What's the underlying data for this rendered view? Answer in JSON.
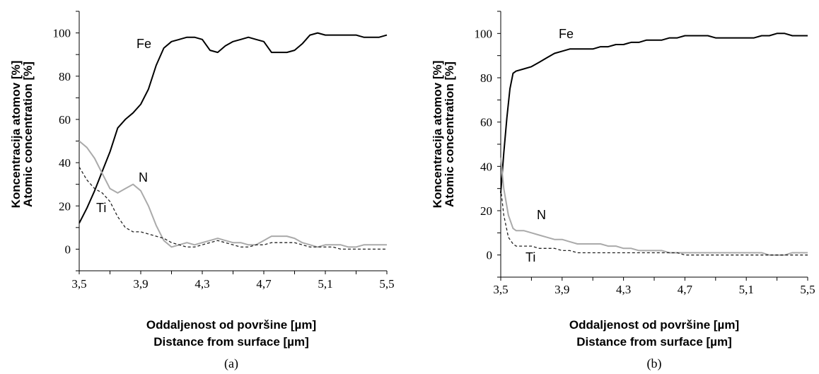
{
  "chart_data": [
    {
      "type": "line",
      "caption": "(a)",
      "xlabel": [
        "Oddaljenost od površine [µm]",
        "Distance from surface [µm]"
      ],
      "ylabel": [
        "Koncentracija atomov [%]",
        "Atomic concentration [%]"
      ],
      "xlim": [
        3.5,
        5.5
      ],
      "ylim": [
        -10,
        110
      ],
      "x_ticks": [
        "3,5",
        "3,9",
        "4,3",
        "4,7",
        "5,1",
        "5,5"
      ],
      "y_ticks": [
        "0",
        "20",
        "40",
        "60",
        "80",
        "100"
      ],
      "series": [
        {
          "name": "Fe",
          "color": "#000000",
          "style": "solid",
          "points": [
            [
              3.5,
              12
            ],
            [
              3.55,
              19
            ],
            [
              3.6,
              27
            ],
            [
              3.65,
              36
            ],
            [
              3.7,
              45
            ],
            [
              3.75,
              56
            ],
            [
              3.8,
              60
            ],
            [
              3.85,
              63
            ],
            [
              3.9,
              67
            ],
            [
              3.95,
              74
            ],
            [
              4.0,
              85
            ],
            [
              4.05,
              93
            ],
            [
              4.1,
              96
            ],
            [
              4.15,
              97
            ],
            [
              4.2,
              98
            ],
            [
              4.25,
              98
            ],
            [
              4.3,
              97
            ],
            [
              4.35,
              92
            ],
            [
              4.4,
              91
            ],
            [
              4.45,
              94
            ],
            [
              4.5,
              96
            ],
            [
              4.55,
              97
            ],
            [
              4.6,
              98
            ],
            [
              4.65,
              97
            ],
            [
              4.7,
              96
            ],
            [
              4.75,
              91
            ],
            [
              4.8,
              91
            ],
            [
              4.85,
              91
            ],
            [
              4.9,
              92
            ],
            [
              4.95,
              95
            ],
            [
              5.0,
              99
            ],
            [
              5.05,
              100
            ],
            [
              5.1,
              99
            ],
            [
              5.15,
              99
            ],
            [
              5.2,
              99
            ],
            [
              5.25,
              99
            ],
            [
              5.3,
              99
            ],
            [
              5.35,
              98
            ],
            [
              5.4,
              98
            ],
            [
              5.45,
              98
            ],
            [
              5.5,
              99
            ]
          ]
        },
        {
          "name": "N",
          "color": "#aaaaaa",
          "style": "solid",
          "points": [
            [
              3.5,
              50
            ],
            [
              3.55,
              47
            ],
            [
              3.6,
              42
            ],
            [
              3.65,
              35
            ],
            [
              3.7,
              28
            ],
            [
              3.75,
              26
            ],
            [
              3.8,
              28
            ],
            [
              3.85,
              30
            ],
            [
              3.9,
              27
            ],
            [
              3.95,
              20
            ],
            [
              4.0,
              11
            ],
            [
              4.05,
              4
            ],
            [
              4.1,
              1
            ],
            [
              4.15,
              2
            ],
            [
              4.2,
              3
            ],
            [
              4.25,
              2
            ],
            [
              4.3,
              3
            ],
            [
              4.35,
              4
            ],
            [
              4.4,
              5
            ],
            [
              4.45,
              4
            ],
            [
              4.5,
              3
            ],
            [
              4.55,
              3
            ],
            [
              4.6,
              2
            ],
            [
              4.65,
              2
            ],
            [
              4.7,
              4
            ],
            [
              4.75,
              6
            ],
            [
              4.8,
              6
            ],
            [
              4.85,
              6
            ],
            [
              4.9,
              5
            ],
            [
              4.95,
              3
            ],
            [
              5.0,
              2
            ],
            [
              5.05,
              1
            ],
            [
              5.1,
              2
            ],
            [
              5.15,
              2
            ],
            [
              5.2,
              2
            ],
            [
              5.25,
              1
            ],
            [
              5.3,
              1
            ],
            [
              5.35,
              2
            ],
            [
              5.4,
              2
            ],
            [
              5.45,
              2
            ],
            [
              5.5,
              2
            ]
          ]
        },
        {
          "name": "Ti",
          "color": "#222222",
          "style": "dashed",
          "points": [
            [
              3.5,
              38
            ],
            [
              3.55,
              32
            ],
            [
              3.6,
              28
            ],
            [
              3.65,
              26
            ],
            [
              3.7,
              22
            ],
            [
              3.75,
              15
            ],
            [
              3.8,
              10
            ],
            [
              3.85,
              8
            ],
            [
              3.9,
              8
            ],
            [
              3.95,
              7
            ],
            [
              4.0,
              6
            ],
            [
              4.05,
              5
            ],
            [
              4.1,
              3
            ],
            [
              4.15,
              2
            ],
            [
              4.2,
              1
            ],
            [
              4.25,
              1
            ],
            [
              4.3,
              2
            ],
            [
              4.35,
              3
            ],
            [
              4.4,
              4
            ],
            [
              4.45,
              3
            ],
            [
              4.5,
              2
            ],
            [
              4.55,
              1
            ],
            [
              4.6,
              1
            ],
            [
              4.65,
              2
            ],
            [
              4.7,
              2
            ],
            [
              4.75,
              3
            ],
            [
              4.8,
              3
            ],
            [
              4.85,
              3
            ],
            [
              4.9,
              3
            ],
            [
              4.95,
              2
            ],
            [
              5.0,
              1
            ],
            [
              5.05,
              1
            ],
            [
              5.1,
              1
            ],
            [
              5.15,
              1
            ],
            [
              5.2,
              0
            ],
            [
              5.25,
              0
            ],
            [
              5.3,
              0
            ],
            [
              5.35,
              0
            ],
            [
              5.4,
              0
            ],
            [
              5.45,
              0
            ],
            [
              5.5,
              0
            ]
          ]
        }
      ]
    },
    {
      "type": "line",
      "caption": "(b)",
      "xlabel": [
        "Oddaljenost od površine [µm]",
        "Distance from surface [µm]"
      ],
      "ylabel": [
        "Koncentracija atomov [%]",
        "Atomic concentration [%]"
      ],
      "xlim": [
        3.5,
        5.5
      ],
      "ylim": [
        -10,
        110
      ],
      "x_ticks": [
        "3,5",
        "3,9",
        "4,3",
        "4,7",
        "5,1",
        "5,5"
      ],
      "y_ticks": [
        "0",
        "20",
        "40",
        "60",
        "80",
        "100"
      ],
      "series": [
        {
          "name": "Fe",
          "color": "#000000",
          "style": "solid",
          "points": [
            [
              3.5,
              28
            ],
            [
              3.52,
              46
            ],
            [
              3.54,
              62
            ],
            [
              3.56,
              75
            ],
            [
              3.58,
              82
            ],
            [
              3.6,
              83
            ],
            [
              3.65,
              84
            ],
            [
              3.7,
              85
            ],
            [
              3.75,
              87
            ],
            [
              3.8,
              89
            ],
            [
              3.85,
              91
            ],
            [
              3.9,
              92
            ],
            [
              3.95,
              93
            ],
            [
              4.0,
              93
            ],
            [
              4.05,
              93
            ],
            [
              4.1,
              93
            ],
            [
              4.15,
              94
            ],
            [
              4.2,
              94
            ],
            [
              4.25,
              95
            ],
            [
              4.3,
              95
            ],
            [
              4.35,
              96
            ],
            [
              4.4,
              96
            ],
            [
              4.45,
              97
            ],
            [
              4.5,
              97
            ],
            [
              4.55,
              97
            ],
            [
              4.6,
              98
            ],
            [
              4.65,
              98
            ],
            [
              4.7,
              99
            ],
            [
              4.75,
              99
            ],
            [
              4.8,
              99
            ],
            [
              4.85,
              99
            ],
            [
              4.9,
              98
            ],
            [
              4.95,
              98
            ],
            [
              5.0,
              98
            ],
            [
              5.05,
              98
            ],
            [
              5.1,
              98
            ],
            [
              5.15,
              98
            ],
            [
              5.2,
              99
            ],
            [
              5.25,
              99
            ],
            [
              5.3,
              100
            ],
            [
              5.35,
              100
            ],
            [
              5.4,
              99
            ],
            [
              5.45,
              99
            ],
            [
              5.5,
              99
            ]
          ]
        },
        {
          "name": "N",
          "color": "#aaaaaa",
          "style": "solid",
          "points": [
            [
              3.5,
              44
            ],
            [
              3.52,
              30
            ],
            [
              3.55,
              18
            ],
            [
              3.58,
              12
            ],
            [
              3.6,
              11
            ],
            [
              3.65,
              11
            ],
            [
              3.7,
              10
            ],
            [
              3.75,
              9
            ],
            [
              3.8,
              8
            ],
            [
              3.85,
              7
            ],
            [
              3.9,
              7
            ],
            [
              3.95,
              6
            ],
            [
              4.0,
              5
            ],
            [
              4.05,
              5
            ],
            [
              4.1,
              5
            ],
            [
              4.15,
              5
            ],
            [
              4.2,
              4
            ],
            [
              4.25,
              4
            ],
            [
              4.3,
              3
            ],
            [
              4.35,
              3
            ],
            [
              4.4,
              2
            ],
            [
              4.45,
              2
            ],
            [
              4.5,
              2
            ],
            [
              4.55,
              2
            ],
            [
              4.6,
              1
            ],
            [
              4.65,
              1
            ],
            [
              4.7,
              1
            ],
            [
              4.75,
              1
            ],
            [
              4.8,
              1
            ],
            [
              4.85,
              1
            ],
            [
              4.9,
              1
            ],
            [
              4.95,
              1
            ],
            [
              5.0,
              1
            ],
            [
              5.05,
              1
            ],
            [
              5.1,
              1
            ],
            [
              5.15,
              1
            ],
            [
              5.2,
              1
            ],
            [
              5.25,
              0
            ],
            [
              5.3,
              0
            ],
            [
              5.35,
              0
            ],
            [
              5.4,
              1
            ],
            [
              5.45,
              1
            ],
            [
              5.5,
              1
            ]
          ]
        },
        {
          "name": "Ti",
          "color": "#222222",
          "style": "dashed",
          "points": [
            [
              3.5,
              30
            ],
            [
              3.52,
              18
            ],
            [
              3.55,
              8
            ],
            [
              3.58,
              5
            ],
            [
              3.6,
              4
            ],
            [
              3.65,
              4
            ],
            [
              3.7,
              4
            ],
            [
              3.75,
              3
            ],
            [
              3.8,
              3
            ],
            [
              3.85,
              3
            ],
            [
              3.9,
              2
            ],
            [
              3.95,
              2
            ],
            [
              4.0,
              1
            ],
            [
              4.05,
              1
            ],
            [
              4.1,
              1
            ],
            [
              4.15,
              1
            ],
            [
              4.2,
              1
            ],
            [
              4.25,
              1
            ],
            [
              4.3,
              1
            ],
            [
              4.35,
              1
            ],
            [
              4.4,
              1
            ],
            [
              4.45,
              1
            ],
            [
              4.5,
              1
            ],
            [
              4.55,
              1
            ],
            [
              4.6,
              1
            ],
            [
              4.65,
              1
            ],
            [
              4.7,
              0
            ],
            [
              4.75,
              0
            ],
            [
              4.8,
              0
            ],
            [
              4.85,
              0
            ],
            [
              4.9,
              0
            ],
            [
              4.95,
              0
            ],
            [
              5.0,
              0
            ],
            [
              5.05,
              0
            ],
            [
              5.1,
              0
            ],
            [
              5.15,
              0
            ],
            [
              5.2,
              0
            ],
            [
              5.25,
              0
            ],
            [
              5.3,
              0
            ],
            [
              5.35,
              0
            ],
            [
              5.4,
              0
            ],
            [
              5.45,
              0
            ],
            [
              5.5,
              0
            ]
          ]
        }
      ]
    }
  ]
}
